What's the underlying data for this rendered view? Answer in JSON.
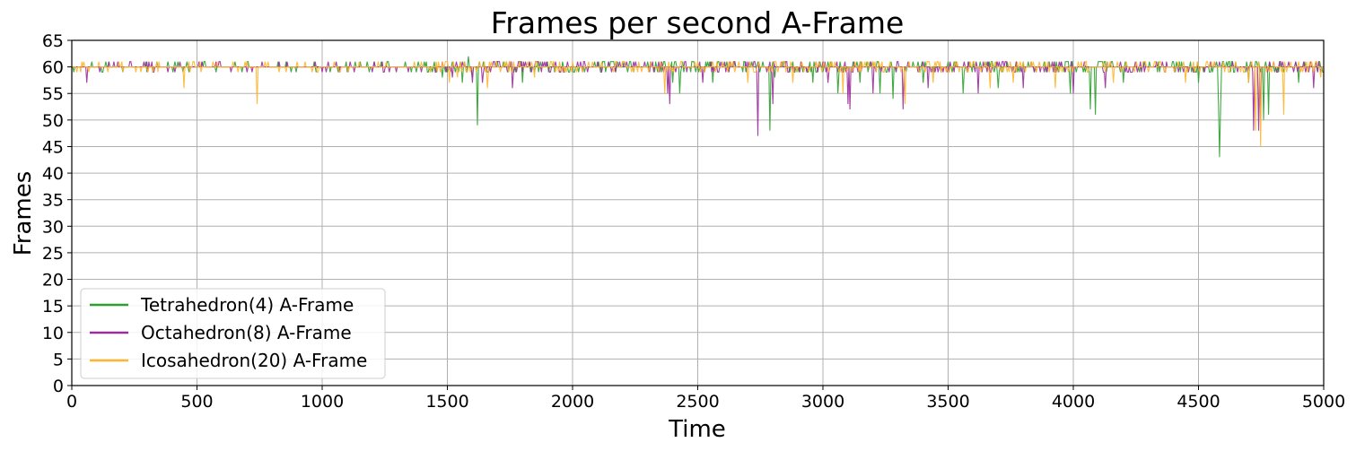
{
  "chart_data": {
    "type": "line",
    "title": "Frames per second A-Frame",
    "xlabel": "Time",
    "ylabel": "Frames",
    "xlim": [
      0,
      5000
    ],
    "ylim": [
      0,
      65
    ],
    "xticks": [
      0,
      500,
      1000,
      1500,
      2000,
      2500,
      3000,
      3500,
      4000,
      4500,
      5000
    ],
    "yticks": [
      0,
      5,
      10,
      15,
      20,
      25,
      30,
      35,
      40,
      45,
      50,
      55,
      60,
      65
    ],
    "grid": true,
    "legend_position": "lower-left",
    "baseline": 60,
    "series": [
      {
        "name": "Tetrahedron(4) A-Frame",
        "color": "#2ca02c",
        "dips": [
          [
            120,
            59
          ],
          [
            300,
            59
          ],
          [
            680,
            59
          ],
          [
            1190,
            59
          ],
          [
            1480,
            58
          ],
          [
            1560,
            57
          ],
          [
            1600,
            58
          ],
          [
            1620,
            49
          ],
          [
            1800,
            57
          ],
          [
            2400,
            57
          ],
          [
            2430,
            55
          ],
          [
            2560,
            57
          ],
          [
            2790,
            48
          ],
          [
            2810,
            58
          ],
          [
            2960,
            57
          ],
          [
            3060,
            55
          ],
          [
            3150,
            57
          ],
          [
            3230,
            55
          ],
          [
            3280,
            54
          ],
          [
            3400,
            57
          ],
          [
            3560,
            55
          ],
          [
            3700,
            56
          ],
          [
            3990,
            55
          ],
          [
            4070,
            52
          ],
          [
            4090,
            51
          ],
          [
            4200,
            57
          ],
          [
            4500,
            57
          ],
          [
            4580,
            53
          ],
          [
            4585,
            43
          ],
          [
            4590,
            52
          ],
          [
            4700,
            57
          ],
          [
            4760,
            50
          ],
          [
            4780,
            51
          ],
          [
            4900,
            57
          ]
        ],
        "spikes": [
          [
            150,
            61
          ],
          [
            340,
            61
          ],
          [
            700,
            61
          ],
          [
            1210,
            61
          ],
          [
            1450,
            61
          ],
          [
            1585,
            62
          ],
          [
            1700,
            61
          ],
          [
            1900,
            61
          ],
          [
            2300,
            61
          ],
          [
            2600,
            61
          ],
          [
            2950,
            61
          ],
          [
            3200,
            61
          ],
          [
            3500,
            61
          ],
          [
            3800,
            61
          ],
          [
            4100,
            61
          ],
          [
            4400,
            61
          ],
          [
            4650,
            61
          ]
        ]
      },
      {
        "name": "Octahedron(8) A-Frame",
        "color": "#9b2c9b",
        "dips": [
          [
            60,
            57
          ],
          [
            330,
            59
          ],
          [
            700,
            59
          ],
          [
            1270,
            59
          ],
          [
            1520,
            58
          ],
          [
            1600,
            57
          ],
          [
            1640,
            57
          ],
          [
            1760,
            56
          ],
          [
            2380,
            55
          ],
          [
            2390,
            53
          ],
          [
            2520,
            57
          ],
          [
            2740,
            47
          ],
          [
            2800,
            53
          ],
          [
            3020,
            57
          ],
          [
            3100,
            53
          ],
          [
            3110,
            52
          ],
          [
            3200,
            55
          ],
          [
            3320,
            52
          ],
          [
            3420,
            56
          ],
          [
            3620,
            55
          ],
          [
            3650,
            55
          ],
          [
            3800,
            56
          ],
          [
            4000,
            55
          ],
          [
            4130,
            56
          ],
          [
            4250,
            56
          ],
          [
            4720,
            48
          ],
          [
            4740,
            48
          ],
          [
            4750,
            50
          ],
          [
            4960,
            56
          ]
        ],
        "spikes": [
          [
            170,
            61
          ],
          [
            320,
            61
          ],
          [
            520,
            61
          ],
          [
            830,
            61
          ],
          [
            1240,
            61
          ],
          [
            1560,
            61
          ],
          [
            1750,
            61
          ],
          [
            2100,
            61
          ],
          [
            2450,
            61
          ],
          [
            2700,
            61
          ],
          [
            3000,
            61
          ],
          [
            3300,
            61
          ],
          [
            3650,
            61
          ],
          [
            3900,
            61
          ],
          [
            4250,
            61
          ],
          [
            4550,
            61
          ],
          [
            4800,
            61
          ],
          [
            4980,
            61
          ]
        ]
      },
      {
        "name": "Icosahedron(20) A-Frame",
        "color": "#ffb52e",
        "dips": [
          [
            20,
            59
          ],
          [
            450,
            56
          ],
          [
            740,
            53
          ],
          [
            1510,
            57
          ],
          [
            1540,
            58
          ],
          [
            1660,
            56
          ],
          [
            1850,
            58
          ],
          [
            2370,
            55
          ],
          [
            2700,
            57
          ],
          [
            2880,
            57
          ],
          [
            3080,
            55
          ],
          [
            3330,
            53
          ],
          [
            3440,
            57
          ],
          [
            3670,
            56
          ],
          [
            3760,
            57
          ],
          [
            3930,
            56
          ],
          [
            4160,
            57
          ],
          [
            4450,
            57
          ],
          [
            4700,
            57
          ],
          [
            4730,
            48
          ],
          [
            4750,
            45
          ],
          [
            4840,
            51
          ],
          [
            4990,
            58
          ]
        ],
        "spikes": [
          [
            40,
            61
          ],
          [
            200,
            61
          ],
          [
            580,
            61
          ],
          [
            900,
            61
          ],
          [
            1150,
            61
          ],
          [
            1480,
            61
          ],
          [
            1650,
            61
          ],
          [
            1950,
            61
          ],
          [
            2200,
            61
          ],
          [
            2500,
            61
          ],
          [
            2850,
            61
          ],
          [
            3150,
            61
          ],
          [
            3450,
            61
          ],
          [
            3750,
            61
          ],
          [
            4050,
            61
          ],
          [
            4350,
            61
          ],
          [
            4600,
            61
          ],
          [
            4900,
            61
          ]
        ]
      }
    ]
  }
}
